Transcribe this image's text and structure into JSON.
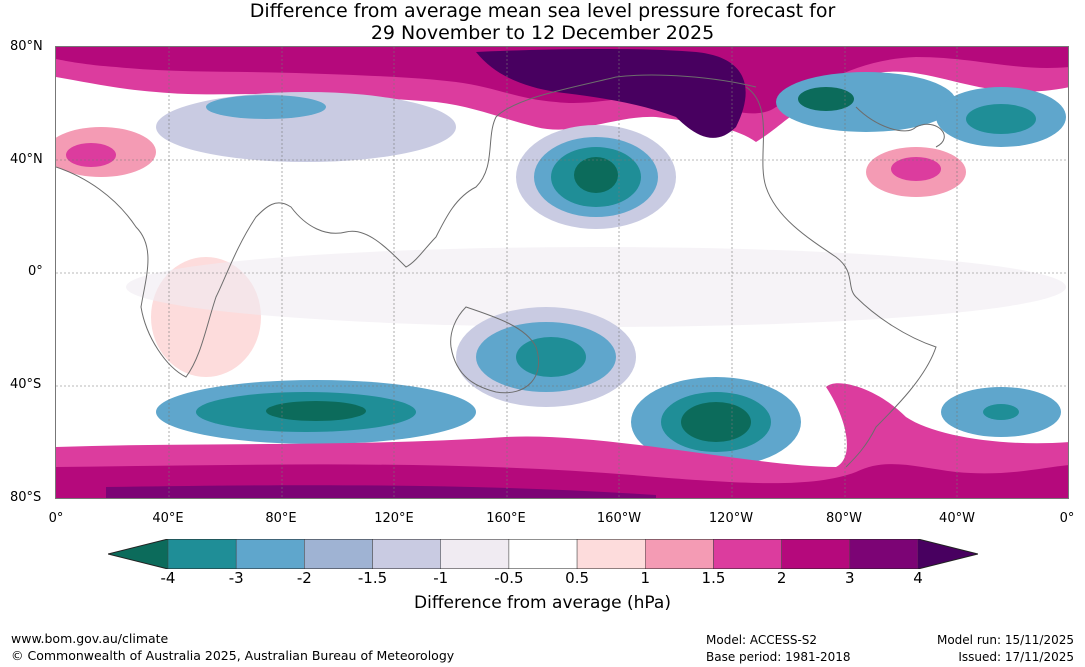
{
  "title": {
    "line1": "Difference from average mean sea level pressure forecast for",
    "line2": "29 November to 12 December 2025"
  },
  "lat_labels": [
    "80°N",
    "40°N",
    "0°",
    "40°S",
    "80°S"
  ],
  "lon_labels": [
    "0°",
    "40°E",
    "80°E",
    "120°E",
    "160°E",
    "160°W",
    "120°W",
    "80°W",
    "40°W",
    "0°"
  ],
  "colorbar": {
    "ticks": [
      "-4",
      "-3",
      "-2",
      "-1.5",
      "-1",
      "-0.5",
      "0.5",
      "1",
      "1.5",
      "2",
      "3",
      "4"
    ],
    "colors": [
      "#0c6b5b",
      "#1f8e97",
      "#5fa6cc",
      "#9fb3d3",
      "#c9cbe2",
      "#f0ebf2",
      "#ffffff",
      "#fddcdc",
      "#f49bb4",
      "#dc3c9e",
      "#b5097c",
      "#7c0475",
      "#480060"
    ],
    "label": "Difference from average (hPa)"
  },
  "footer": {
    "url": "www.bom.gov.au/climate",
    "copyright": "© Commonwealth of Australia 2025, Australian Bureau of Meteorology",
    "model": "Model: ACCESS-S2",
    "base_period": "Base period: 1981-2018",
    "model_run": "Model run: 15/11/2025",
    "issued": "Issued: 17/11/2025"
  }
}
